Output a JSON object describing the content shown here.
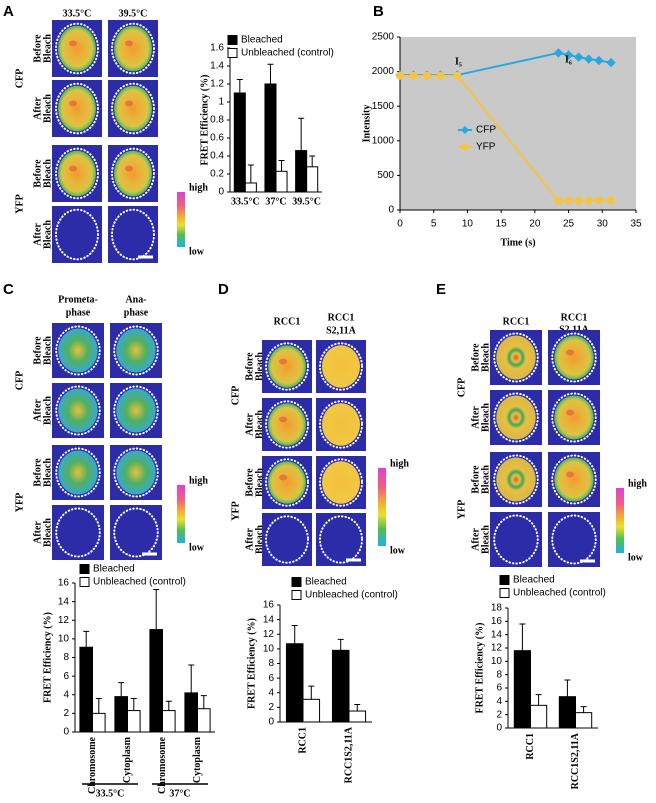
{
  "figure": {
    "panel_labels": [
      "A",
      "B",
      "C",
      "D",
      "E"
    ],
    "image_panels": [
      {
        "columns": [
          [
            "33.5°C"
          ],
          [
            "39.5°C"
          ]
        ],
        "rows": [
          {
            "channel": "CFP",
            "states": [
              [
                "Before",
                "Bleach"
              ],
              [
                "After",
                "Bleach"
              ]
            ]
          },
          {
            "channel": "YFP",
            "states": [
              [
                "Before",
                "Bleach"
              ],
              [
                "After",
                "Bleach"
              ]
            ]
          }
        ],
        "scale": [
          "high",
          "low"
        ]
      },
      {
        "columns": [
          [
            "Prometa-",
            "phase"
          ],
          [
            "Ana-",
            "phase"
          ]
        ],
        "rows": [
          {
            "channel": "CFP",
            "states": [
              [
                "Before",
                "Bleach"
              ],
              [
                "After",
                "Bleach"
              ]
            ]
          },
          {
            "channel": "YFP",
            "states": [
              [
                "Before",
                "Bleach"
              ],
              [
                "After",
                "Bleach"
              ]
            ]
          }
        ],
        "scale": [
          "high",
          "low"
        ]
      },
      {
        "columns": [
          [
            "RCC1"
          ],
          [
            "RCC1",
            "S2,11A"
          ]
        ],
        "rows": [
          {
            "channel": "CFP",
            "states": [
              [
                "Before",
                "Bleach"
              ],
              [
                "After",
                "Bleach"
              ]
            ]
          },
          {
            "channel": "YFP",
            "states": [
              [
                "Before",
                "Bleach"
              ],
              [
                "After",
                "Bleach"
              ]
            ]
          }
        ],
        "scale": [
          "high",
          "low"
        ]
      },
      {
        "columns": [
          [
            "RCC1"
          ],
          [
            "RCC1",
            "S2,11A"
          ]
        ],
        "rows": [
          {
            "channel": "CFP",
            "states": [
              [
                "Before",
                "Bleach"
              ],
              [
                "After",
                "Bleach"
              ]
            ]
          },
          {
            "channel": "YFP",
            "states": [
              [
                "Before",
                "Bleach"
              ],
              [
                "After",
                "Bleach"
              ]
            ]
          }
        ],
        "scale": [
          "high",
          "low"
        ]
      }
    ]
  },
  "chart_data": [
    {
      "type": "bar",
      "categories": [
        "33.5°C",
        "37°C",
        "39.5°C"
      ],
      "series": [
        {
          "name": "Bleached",
          "color": "#000000",
          "values": [
            1.1,
            1.2,
            0.46
          ],
          "errors": [
            0.15,
            0.22,
            0.36
          ]
        },
        {
          "name": "Unbleached (control)",
          "color": "#ffffff",
          "values": [
            0.1,
            0.23,
            0.28
          ],
          "errors": [
            0.2,
            0.12,
            0.12
          ]
        }
      ],
      "ylabel": "FRET Efficiency (%)",
      "ylim": [
        0,
        1.6
      ],
      "yticks": [
        0,
        0.2,
        0.4,
        0.6,
        0.8,
        1,
        1.2,
        1.4,
        1.6
      ]
    },
    {
      "type": "line",
      "x": [
        0,
        2,
        4,
        6,
        8.5,
        23.5,
        25,
        26.5,
        28,
        29.5,
        31.3
      ],
      "series": [
        {
          "name": "CFP",
          "color": "#29a8e0",
          "marker": "diamond",
          "values": [
            1950,
            1950,
            1950,
            1950,
            1950,
            2270,
            2240,
            2210,
            2180,
            2160,
            2130
          ]
        },
        {
          "name": "YFP",
          "color": "#f5c445",
          "marker": "circle",
          "values": [
            1940,
            1940,
            1940,
            1940,
            1940,
            130,
            135,
            135,
            135,
            140,
            140
          ]
        }
      ],
      "xlabel": "Time (s)",
      "ylabel": "Intensity",
      "annotations": [
        "I₅",
        "I₆"
      ],
      "xlim": [
        0,
        35
      ],
      "xticks": [
        0,
        5,
        10,
        15,
        20,
        25,
        30,
        35
      ],
      "ylim": [
        0,
        2500
      ],
      "yticks": [
        0,
        500,
        1000,
        1500,
        2000,
        2500
      ]
    },
    {
      "type": "bar",
      "categories": [
        "Chromosome",
        "Cytoplasm",
        "Chromosome",
        "Cytoplasm"
      ],
      "group_labels": [
        "33.5°C",
        "37°C"
      ],
      "series": [
        {
          "name": "Bleached",
          "color": "#000000",
          "values": [
            9.1,
            3.8,
            11,
            4.2
          ],
          "errors": [
            1.7,
            1.5,
            4.3,
            3.0
          ]
        },
        {
          "name": "Unbleached (control)",
          "color": "#ffffff",
          "values": [
            2.0,
            2.3,
            2.3,
            2.5
          ],
          "errors": [
            1.6,
            1.3,
            1.0,
            1.4
          ]
        }
      ],
      "ylabel": "FRET Efficiency (%)",
      "ylim": [
        0,
        16
      ],
      "yticks": [
        0,
        2,
        4,
        6,
        8,
        10,
        12,
        14,
        16
      ]
    },
    {
      "type": "bar",
      "categories": [
        "RCC1",
        "RCC1S2,11A"
      ],
      "series": [
        {
          "name": "Bleached",
          "color": "#000000",
          "values": [
            10.7,
            9.8
          ],
          "errors": [
            2.5,
            1.5
          ]
        },
        {
          "name": "Unbleached (control)",
          "color": "#ffffff",
          "values": [
            3.1,
            1.5
          ],
          "errors": [
            1.8,
            0.9
          ]
        }
      ],
      "ylabel": "FRET Efficiency (%)",
      "ylim": [
        0,
        16
      ],
      "yticks": [
        0,
        2,
        4,
        6,
        8,
        10,
        12,
        14,
        16
      ]
    },
    {
      "type": "bar",
      "categories": [
        "RCC1",
        "RCC1S2,11A"
      ],
      "series": [
        {
          "name": "Bleached",
          "color": "#000000",
          "values": [
            11.6,
            4.7
          ],
          "errors": [
            4.0,
            2.5
          ]
        },
        {
          "name": "Unbleached (control)",
          "color": "#ffffff",
          "values": [
            3.4,
            2.3
          ],
          "errors": [
            1.6,
            0.9
          ]
        }
      ],
      "ylabel": "FRET Efficiency (%)",
      "ylim": [
        0,
        18
      ],
      "yticks": [
        0,
        2,
        4,
        6,
        8,
        10,
        12,
        14,
        16,
        18
      ]
    }
  ]
}
